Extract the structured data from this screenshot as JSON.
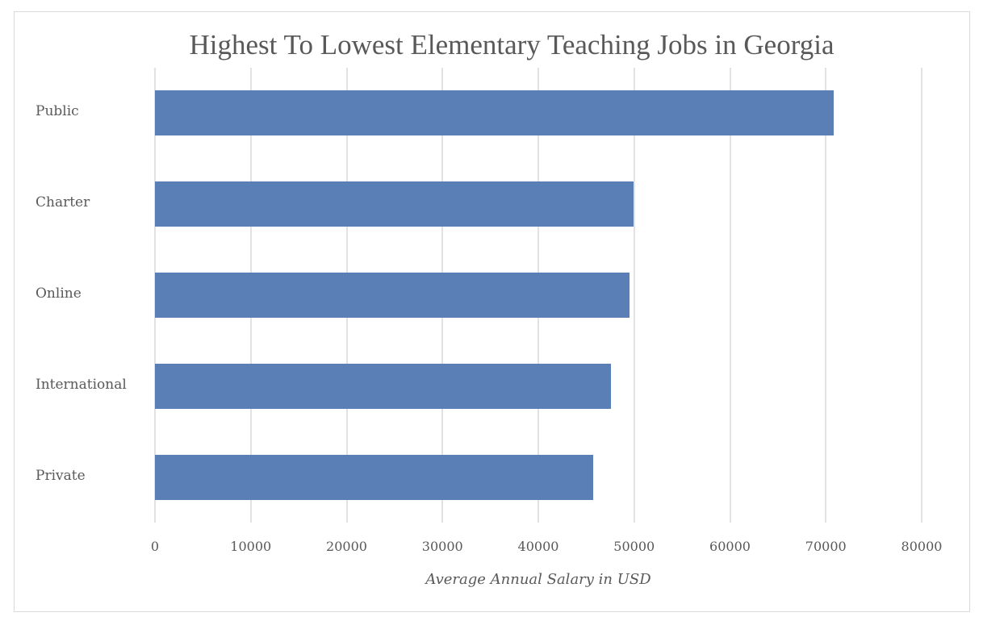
{
  "chart_data": {
    "type": "bar",
    "orientation": "horizontal",
    "title": "Highest To Lowest Elementary Teaching Jobs in Georgia",
    "xlabel": "Average Annual Salary in USD",
    "ylabel": "",
    "categories": [
      "Public",
      "Charter",
      "Online",
      "International",
      "Private"
    ],
    "values": [
      70800,
      49950,
      49500,
      47600,
      45700
    ],
    "xlim": [
      0,
      80000
    ],
    "xticks": [
      "0",
      "10000",
      "20000",
      "30000",
      "40000",
      "50000",
      "60000",
      "70000",
      "80000"
    ],
    "grid": true,
    "legend": "none",
    "bar_color": "#5a7fb6"
  },
  "colors": {
    "bar": "#5a7fb6",
    "grid": "#e2e2e2",
    "text": "#595959",
    "border": "#d9d9d9"
  }
}
